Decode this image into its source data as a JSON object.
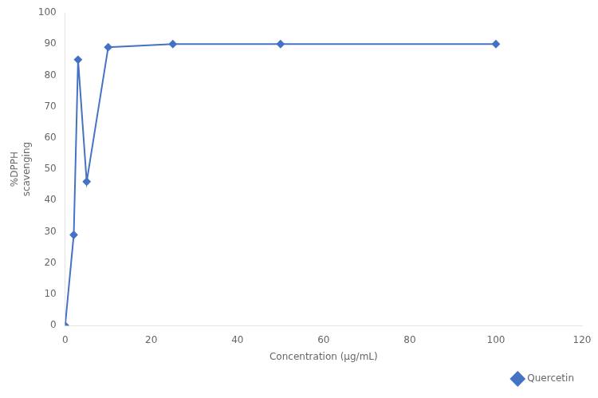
{
  "chart_data": {
    "type": "line",
    "x": [
      0,
      2,
      3,
      5,
      10,
      25,
      50,
      100
    ],
    "series": [
      {
        "name": "Quercetin",
        "color": "#4472C4",
        "marker": "diamond",
        "values": [
          0,
          29,
          85,
          46,
          89,
          90,
          90,
          90
        ]
      }
    ],
    "xlabel": "Concentration (µg/mL)",
    "ylabel": "%DPPH\nscavenging",
    "xlim": [
      0,
      120
    ],
    "ylim": [
      0,
      100
    ],
    "xticks": [
      0,
      20,
      40,
      60,
      80,
      100,
      120
    ],
    "yticks": [
      0,
      10,
      20,
      30,
      40,
      50,
      60,
      70,
      80,
      90,
      100
    ],
    "grid": false,
    "legend": "lower right"
  }
}
